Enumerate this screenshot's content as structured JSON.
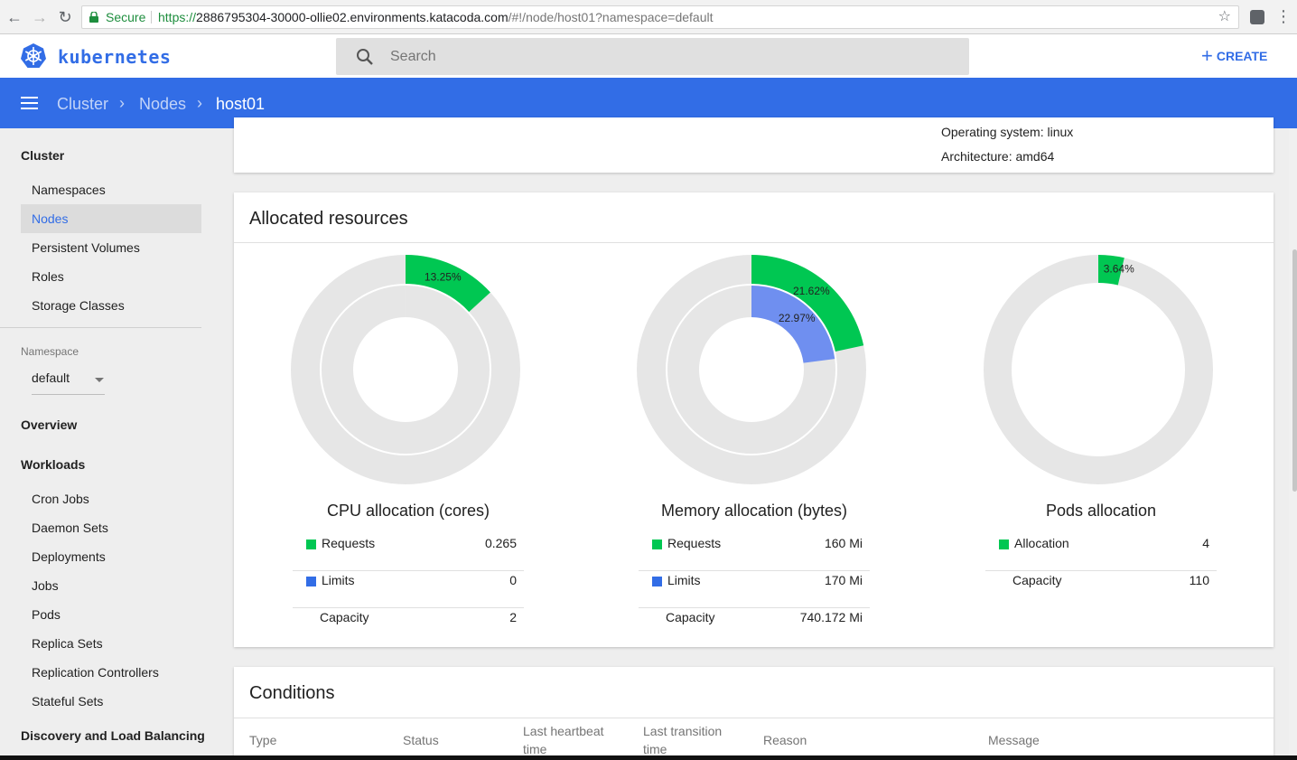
{
  "browser": {
    "secure_label": "Secure",
    "url_scheme": "https://",
    "url_host": "2886795304-30000-ollie02.environments.katacoda.com",
    "url_path": "/#!/node/host01?namespace=default"
  },
  "header": {
    "brand": "kubernetes",
    "search_placeholder": "Search",
    "create_label": "CREATE"
  },
  "breadcrumb": {
    "items": [
      "Cluster",
      "Nodes",
      "host01"
    ]
  },
  "sidebar": {
    "cluster_heading": "Cluster",
    "cluster_items": [
      "Namespaces",
      "Nodes",
      "Persistent Volumes",
      "Roles",
      "Storage Classes"
    ],
    "active_item": "Nodes",
    "namespace_label": "Namespace",
    "namespace_value": "default",
    "overview": "Overview",
    "workloads_heading": "Workloads",
    "workload_items": [
      "Cron Jobs",
      "Daemon Sets",
      "Deployments",
      "Jobs",
      "Pods",
      "Replica Sets",
      "Replication Controllers",
      "Stateful Sets"
    ],
    "discovery_heading": "Discovery and Load Balancing"
  },
  "details": {
    "os_label": "Operating system:",
    "os_value": "linux",
    "arch_label": "Architecture:",
    "arch_value": "amd64"
  },
  "allocated": {
    "title": "Allocated resources",
    "colors": {
      "requests": "#00c752",
      "limits": "#326de6",
      "track": "#e6e6e6"
    },
    "charts": [
      {
        "title": "CPU allocation (cores)",
        "outer_pct": 13.25,
        "outer_label": "13.25%",
        "inner_pct": 0,
        "inner_label": "",
        "rows": [
          {
            "name": "Requests",
            "value": "0.265",
            "swatch": "requests"
          },
          {
            "name": "Limits",
            "value": "0",
            "swatch": "limits"
          },
          {
            "name": "Capacity",
            "value": "2",
            "swatch": ""
          }
        ]
      },
      {
        "title": "Memory allocation (bytes)",
        "outer_pct": 21.62,
        "outer_label": "21.62%",
        "inner_pct": 22.97,
        "inner_label": "22.97%",
        "rows": [
          {
            "name": "Requests",
            "value": "160 Mi",
            "swatch": "requests"
          },
          {
            "name": "Limits",
            "value": "170 Mi",
            "swatch": "limits"
          },
          {
            "name": "Capacity",
            "value": "740.172 Mi",
            "swatch": ""
          }
        ]
      },
      {
        "title": "Pods allocation",
        "outer_pct": 3.64,
        "outer_label": "3.64%",
        "single": true,
        "rows": [
          {
            "name": "Allocation",
            "value": "4",
            "swatch": "requests"
          },
          {
            "name": "Capacity",
            "value": "110",
            "swatch": ""
          }
        ]
      }
    ]
  },
  "conditions": {
    "title": "Conditions",
    "columns": [
      "Type",
      "Status",
      "Last heartbeat time",
      "Last transition time",
      "Reason",
      "Message"
    ]
  }
}
